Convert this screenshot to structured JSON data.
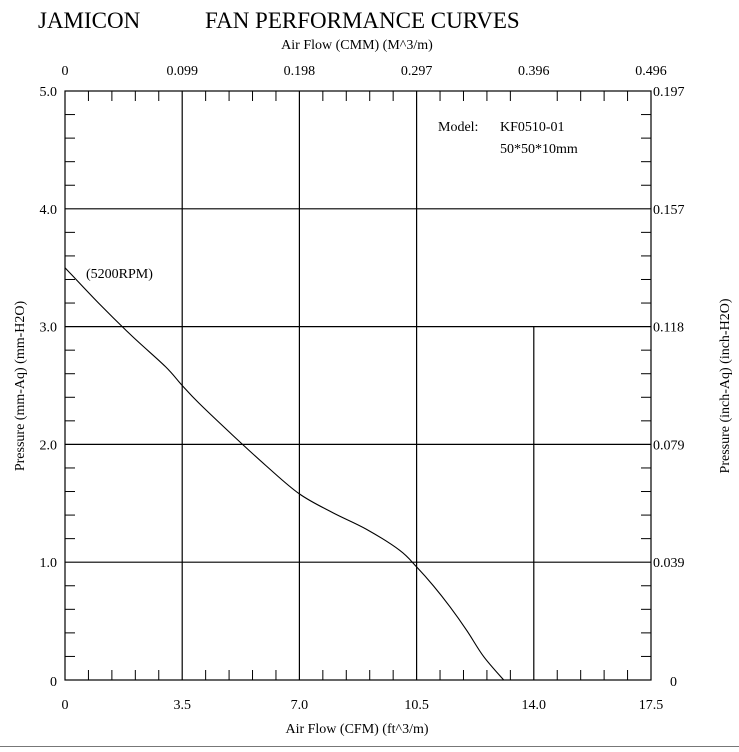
{
  "brand": "JAMICON",
  "chart_data": {
    "type": "line",
    "title": "FAN PERFORMANCE CURVES",
    "xlabel": "Air Flow (CFM) (ft^3/m)",
    "xlabel_top": "Air Flow (CMM) (M^3/m)",
    "ylabel": "Pressure (mm-Aq) (mm-H2O)",
    "ylabel_right": "Pressure (inch-Aq) (inch-H2O)",
    "xlim": [
      0,
      17.5
    ],
    "ylim": [
      0,
      5.0
    ],
    "x_ticks": [
      "0",
      "3.5",
      "7.0",
      "10.5",
      "14.0",
      "17.5"
    ],
    "x_ticks_top": [
      "0",
      "0.099",
      "0.198",
      "0.297",
      "0.396",
      "0.496"
    ],
    "y_ticks": [
      "0",
      "1.0",
      "2.0",
      "3.0",
      "4.0",
      "5.0"
    ],
    "y_ticks_right": [
      "0",
      "0.039",
      "0.079",
      "0.118",
      "0.157",
      "0.197"
    ],
    "grid": true,
    "model_label": "Model:",
    "model_name": "KF0510-01",
    "model_size": "50*50*10mm",
    "series": [
      {
        "name": "(5200RPM)",
        "x": [
          0,
          1,
          2,
          3,
          3.5,
          4,
          5,
          6,
          7,
          8,
          9,
          10,
          10.5,
          11,
          11.5,
          12,
          12.5,
          13.1
        ],
        "y": [
          3.5,
          3.2,
          2.92,
          2.66,
          2.5,
          2.35,
          2.08,
          1.82,
          1.58,
          1.42,
          1.28,
          1.1,
          0.96,
          0.8,
          0.62,
          0.42,
          0.2,
          0
        ]
      }
    ]
  }
}
